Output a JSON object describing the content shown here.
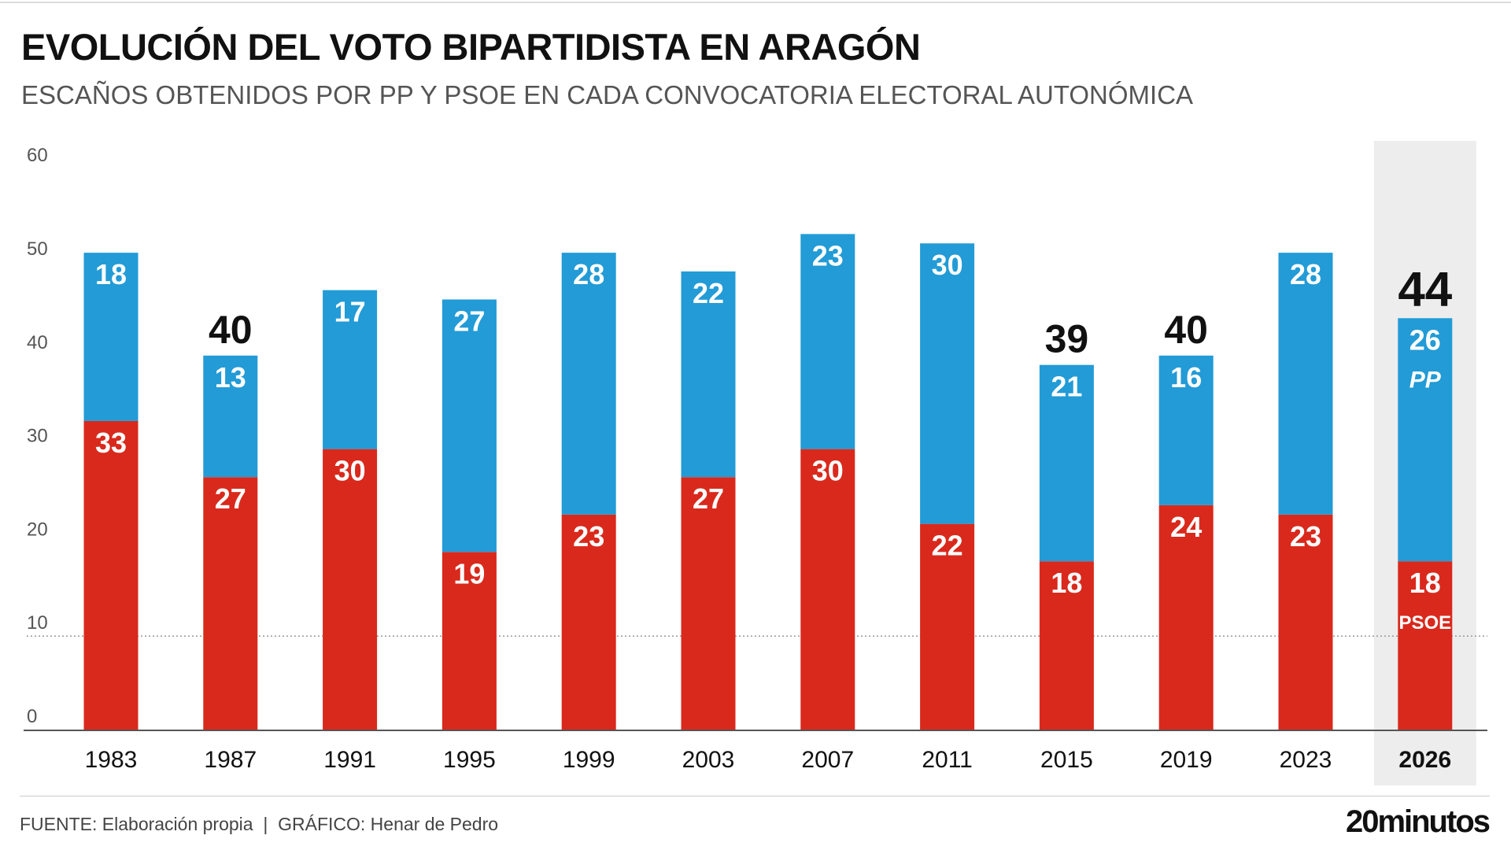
{
  "title": "EVOLUCIÓN DEL VOTO BIPARTIDISTA EN ARAGÓN",
  "subtitle": "ESCAÑOS OBTENIDOS POR PP Y PSOE EN CADA CONVOCATORIA ELECTORAL AUTONÓMICA",
  "footer": {
    "source": "FUENTE: Elaboración propia  |  GRÁFICO: Henar de Pedro",
    "brand": "20minutos"
  },
  "colors": {
    "pp": "#229BD6",
    "psoe": "#D9291C",
    "highlight": "#EDEDED"
  },
  "chart_data": {
    "type": "bar",
    "stacked": true,
    "categories": [
      "1983",
      "1987",
      "1991",
      "1995",
      "1999",
      "2003",
      "2007",
      "2011",
      "2015",
      "2019",
      "2023",
      "2026"
    ],
    "series": [
      {
        "name": "PSOE",
        "values": [
          33,
          27,
          30,
          19,
          23,
          27,
          30,
          22,
          18,
          24,
          23,
          18
        ]
      },
      {
        "name": "PP",
        "values": [
          18,
          13,
          17,
          27,
          28,
          22,
          23,
          30,
          21,
          16,
          28,
          26
        ]
      }
    ],
    "totals_labeled": {
      "1987": "40",
      "2015": "39",
      "2019": "40",
      "2026": "44"
    },
    "highlighted_category": "2026",
    "series_labels_in_highlight": {
      "pp": "PP",
      "psoe": "PSOE"
    },
    "yticks": [
      0,
      10,
      20,
      30,
      40,
      50,
      60
    ],
    "ylim": [
      0,
      60
    ],
    "reference_line": 10,
    "xlabel": "",
    "ylabel": ""
  }
}
